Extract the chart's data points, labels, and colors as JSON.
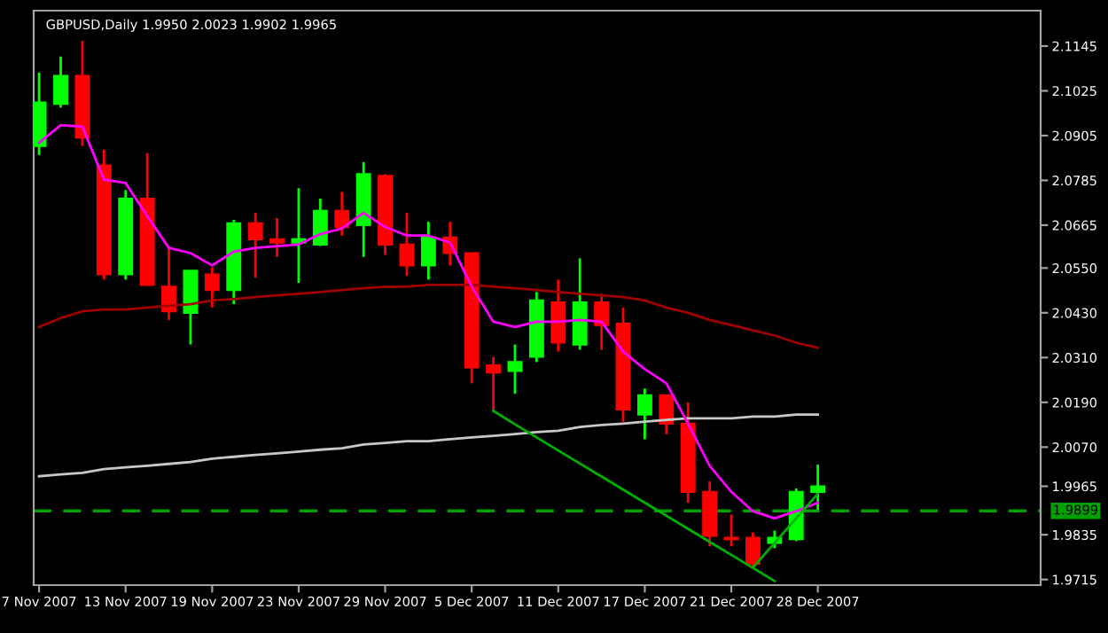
{
  "chart_data": {
    "type": "candlestick",
    "title": "GBPUSD,Daily 1.9950 2.0023 1.9902 1.9965",
    "categories": [
      "7 Nov 2007",
      null,
      null,
      null,
      "13 Nov 2007",
      null,
      null,
      null,
      "19 Nov 2007",
      null,
      null,
      null,
      "23 Nov 2007",
      null,
      null,
      null,
      "29 Nov 2007",
      null,
      null,
      null,
      "5 Dec 2007",
      null,
      null,
      null,
      "11 Dec 2007",
      null,
      null,
      null,
      "17 Dec 2007",
      null,
      null,
      null,
      "21 Dec 2007",
      null,
      null,
      null,
      "28 Dec 2007"
    ],
    "ohlc": [
      [
        2.0877,
        2.1074,
        2.0853,
        2.0994
      ],
      [
        2.099,
        2.1117,
        2.098,
        2.1065
      ],
      [
        2.1065,
        2.1159,
        2.0877,
        2.09
      ],
      [
        2.0825,
        2.0867,
        2.0519,
        2.0533
      ],
      [
        2.0533,
        2.0759,
        2.0519,
        2.0736
      ],
      [
        2.0736,
        2.0858,
        2.0505,
        2.0505
      ],
      [
        2.05,
        2.0604,
        2.0411,
        2.0434
      ],
      [
        2.043,
        2.0543,
        2.0345,
        2.0543
      ],
      [
        2.0533,
        2.0552,
        2.0444,
        2.0491
      ],
      [
        2.0491,
        2.0679,
        2.0453,
        2.067
      ],
      [
        2.067,
        2.0698,
        2.0524,
        2.0627
      ],
      [
        2.0627,
        2.0684,
        2.058,
        2.0618
      ],
      [
        2.0618,
        2.0764,
        2.051,
        2.0627
      ],
      [
        2.0613,
        2.0736,
        2.0609,
        2.0703
      ],
      [
        2.0703,
        2.0754,
        2.0637,
        2.066
      ],
      [
        2.0665,
        2.0834,
        2.058,
        2.0802
      ],
      [
        2.0797,
        2.0802,
        2.0585,
        2.0613
      ],
      [
        2.0613,
        2.0698,
        2.0529,
        2.0557
      ],
      [
        2.0557,
        2.0674,
        2.0519,
        2.0632
      ],
      [
        2.0632,
        2.0674,
        2.0557,
        2.059
      ],
      [
        2.059,
        2.059,
        2.0241,
        2.0284
      ],
      [
        2.0289,
        2.0312,
        2.0167,
        2.027
      ],
      [
        2.0274,
        2.0345,
        2.0213,
        2.0298
      ],
      [
        2.0312,
        2.0486,
        2.0298,
        2.0463
      ],
      [
        2.0458,
        2.0519,
        2.0326,
        2.035
      ],
      [
        2.0345,
        2.0576,
        2.0331,
        2.0458
      ],
      [
        2.0458,
        2.0481,
        2.0331,
        2.0397
      ],
      [
        2.0401,
        2.0444,
        2.0138,
        2.0171
      ],
      [
        2.0157,
        2.0227,
        2.0091,
        2.0209
      ],
      [
        2.0209,
        2.0209,
        2.0105,
        2.0133
      ],
      [
        2.0133,
        2.019,
        1.9921,
        1.995
      ],
      [
        1.995,
        1.9978,
        1.9804,
        1.9832
      ],
      [
        1.9827,
        1.9889,
        1.9804,
        1.9823
      ],
      [
        1.9827,
        1.9841,
        1.9747,
        1.9757
      ],
      [
        1.9813,
        1.9846,
        1.9799,
        1.9827
      ],
      [
        1.9823,
        1.9959,
        1.9818,
        1.995
      ],
      [
        1.995,
        2.0023,
        1.9902,
        1.9965
      ]
    ],
    "colors": [
      "#00ff00",
      "#00ff00",
      "#ff0000",
      "#ff0000",
      "#00ff00",
      "#ff0000",
      "#ff0000",
      "#00ff00",
      "#ff0000",
      "#00ff00",
      "#ff0000",
      "#ff0000",
      "#00ff00",
      "#00ff00",
      "#ff0000",
      "#00ff00",
      "#ff0000",
      "#ff0000",
      "#00ff00",
      "#ff0000",
      "#ff0000",
      "#ff0000",
      "#00ff00",
      "#00ff00",
      "#ff0000",
      "#00ff00",
      "#ff0000",
      "#ff0000",
      "#00ff00",
      "#ff0000",
      "#ff0000",
      "#ff0000",
      "#ff0000",
      "#ff0000",
      "#00ff00",
      "#00ff00",
      "#00ff00"
    ],
    "series": [
      {
        "type": "line",
        "color": "#c8c8c8",
        "values": [
          1.9992,
          1.9997,
          2.0001,
          2.0011,
          2.0016,
          2.002,
          2.0025,
          2.003,
          2.0039,
          2.0044,
          2.0049,
          2.0053,
          2.0058,
          2.0063,
          2.0067,
          2.0077,
          2.0081,
          2.0086,
          2.0086,
          2.0091,
          2.0096,
          2.01,
          2.0105,
          2.011,
          2.0114,
          2.0124,
          2.0129,
          2.0133,
          2.0138,
          2.0143,
          2.0147,
          2.0147,
          2.0147,
          2.0152,
          2.0152,
          2.0157,
          2.0157
        ]
      },
      {
        "type": "line",
        "color": "#a00000",
        "values": [
          2.0392,
          2.0416,
          2.0434,
          2.0439,
          2.0439,
          2.0444,
          2.0449,
          2.0453,
          2.0463,
          2.0467,
          2.0472,
          2.0477,
          2.0481,
          2.0486,
          2.0491,
          2.0496,
          2.05,
          2.05,
          2.0505,
          2.0505,
          2.0505,
          2.05,
          2.0496,
          2.0491,
          2.0486,
          2.0481,
          2.0477,
          2.0472,
          2.0463,
          2.0444,
          2.043,
          2.0411,
          2.0397,
          2.0383,
          2.0369,
          2.035,
          2.0336
        ]
      },
      {
        "type": "line",
        "color": "#ff00ff",
        "values": [
          2.0886,
          2.0933,
          2.0929,
          2.0787,
          2.0778,
          2.0689,
          2.0604,
          2.059,
          2.0557,
          2.0594,
          2.0604,
          2.0609,
          2.0613,
          2.0641,
          2.0656,
          2.0698,
          2.066,
          2.0637,
          2.0637,
          2.0618,
          2.05,
          2.0406,
          2.0392,
          2.0406,
          2.0406,
          2.0411,
          2.0406,
          2.0326,
          2.0279,
          2.0241,
          2.0133,
          2.002,
          1.995,
          1.9898,
          1.9879,
          1.9898,
          1.9921
        ]
      },
      {
        "type": "line",
        "color": "#00b000",
        "values": [
          null,
          null,
          null,
          null,
          null,
          null,
          null,
          null,
          null,
          null,
          null,
          null,
          null,
          null,
          null,
          null,
          null,
          null,
          null,
          null,
          null,
          2.0167,
          2.0131,
          2.0096,
          2.0061,
          2.0026,
          1.9991,
          1.9956,
          1.9921,
          1.9886,
          1.9851,
          1.9816,
          1.9781,
          1.9746,
          1.9711,
          null,
          null
        ]
      },
      {
        "type": "line",
        "color": "#00b000",
        "values": [
          null,
          null,
          null,
          null,
          null,
          null,
          null,
          null,
          null,
          null,
          null,
          null,
          null,
          null,
          null,
          null,
          null,
          null,
          null,
          null,
          null,
          null,
          null,
          null,
          null,
          null,
          null,
          null,
          null,
          null,
          null,
          null,
          null,
          1.9747,
          1.9813,
          1.9879,
          1.9945
        ]
      }
    ],
    "ref_lines": [
      {
        "axis": "y",
        "value": 1.9899,
        "label": "1.9899",
        "color": "#00a000",
        "line_style": "dashed"
      }
    ],
    "ylim": [
      1.97,
      2.124
    ],
    "yticks": [
      2.1145,
      2.1025,
      2.0905,
      2.0785,
      2.0665,
      {
        "value": 2.055,
        "label": "2.0550"
      },
      {
        "value": 2.043,
        "label": "2.0430"
      },
      {
        "value": 2.031,
        "label": "2.0310"
      },
      {
        "value": 2.019,
        "label": "2.0190"
      },
      {
        "value": 2.007,
        "label": "2.0070"
      },
      1.9965,
      1.9835,
      1.9715
    ],
    "grid": false
  }
}
